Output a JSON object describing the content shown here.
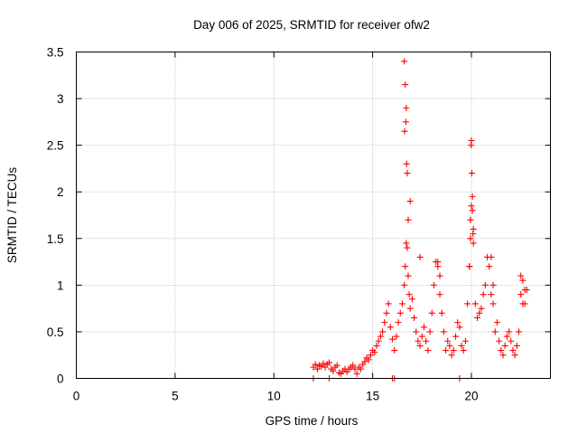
{
  "chart_data": {
    "type": "scatter",
    "title": "Day 006 of 2025, SRMTID for receiver ofw2",
    "xlabel": "GPS time / hours",
    "ylabel": "SRMTID / TECUs",
    "xlim": [
      0,
      24
    ],
    "ylim": [
      0,
      3.5
    ],
    "xticks": [
      0,
      5,
      10,
      15,
      20
    ],
    "yticks": [
      0,
      0.5,
      1,
      1.5,
      2,
      2.5,
      3,
      3.5
    ],
    "ytick_labels": [
      "0",
      "0.5",
      "1",
      "1.5",
      "2",
      "2.5",
      "3",
      "3.5"
    ],
    "grid": true,
    "marker": "plus",
    "series": [
      {
        "name": "SRMTID",
        "color": "#ff0000",
        "x": [
          12.0,
          12.1,
          12.2,
          12.3,
          12.4,
          12.5,
          12.6,
          12.7,
          12.8,
          12.9,
          13.0,
          13.1,
          13.2,
          13.3,
          13.4,
          13.5,
          13.6,
          13.7,
          13.8,
          13.9,
          14.0,
          14.1,
          14.2,
          14.3,
          14.4,
          14.5,
          14.6,
          14.7,
          14.8,
          14.9,
          15.0,
          15.1,
          15.2,
          15.3,
          15.4,
          15.5,
          15.6,
          15.7,
          15.8,
          15.9,
          16.0,
          16.1,
          16.2,
          16.3,
          16.4,
          16.5,
          16.6,
          16.65,
          16.7,
          16.75,
          16.8,
          16.85,
          16.9,
          17.0,
          17.1,
          17.2,
          17.3,
          17.4,
          17.5,
          17.6,
          17.7,
          17.8,
          17.9,
          18.0,
          18.1,
          18.2,
          18.3,
          18.4,
          18.5,
          18.6,
          18.7,
          18.8,
          18.9,
          19.0,
          19.1,
          19.2,
          19.3,
          19.4,
          19.5,
          19.6,
          19.7,
          19.8,
          19.9,
          19.95,
          20.0,
          20.05,
          20.1,
          20.2,
          20.3,
          20.4,
          20.5,
          20.6,
          20.7,
          20.8,
          20.9,
          21.0,
          21.1,
          21.2,
          21.3,
          21.4,
          21.5,
          21.6,
          21.7,
          21.8,
          21.9,
          22.0,
          22.1,
          22.2,
          22.3,
          22.4,
          22.5,
          22.6,
          22.7,
          22.8,
          12.0,
          12.8,
          16.0,
          16.1,
          19.4,
          16.6,
          16.65,
          16.7,
          16.68,
          16.62,
          16.72,
          16.75,
          16.8,
          16.9,
          20.0,
          19.98,
          20.02,
          20.05,
          19.95,
          20.08,
          20.1,
          19.9,
          21.0,
          21.1,
          22.5,
          22.6,
          22.7,
          18.3,
          18.4,
          17.4
        ],
        "y": [
          0.12,
          0.15,
          0.1,
          0.14,
          0.13,
          0.16,
          0.12,
          0.15,
          0.17,
          0.1,
          0.08,
          0.12,
          0.14,
          0.06,
          0.05,
          0.08,
          0.1,
          0.07,
          0.1,
          0.12,
          0.14,
          0.1,
          0.05,
          0.12,
          0.1,
          0.15,
          0.18,
          0.22,
          0.2,
          0.25,
          0.3,
          0.28,
          0.35,
          0.4,
          0.45,
          0.5,
          0.6,
          0.7,
          0.8,
          0.55,
          0.42,
          0.3,
          0.45,
          0.6,
          0.7,
          0.8,
          1.0,
          1.2,
          1.45,
          1.4,
          1.1,
          0.9,
          0.75,
          0.85,
          0.65,
          0.5,
          0.4,
          0.35,
          0.45,
          0.55,
          0.4,
          0.3,
          0.5,
          0.7,
          1.0,
          1.25,
          1.2,
          0.9,
          0.7,
          0.5,
          0.3,
          0.4,
          0.35,
          0.25,
          0.3,
          0.45,
          0.6,
          0.55,
          0.35,
          0.3,
          0.4,
          0.8,
          1.2,
          1.5,
          1.85,
          1.95,
          1.6,
          0.8,
          0.65,
          0.7,
          0.75,
          0.9,
          1.0,
          1.3,
          1.2,
          0.9,
          0.8,
          0.5,
          0.6,
          0.4,
          0.3,
          0.25,
          0.35,
          0.45,
          0.5,
          0.4,
          0.3,
          0.25,
          0.35,
          0.5,
          0.9,
          1.05,
          0.8,
          0.95,
          0.0,
          0.0,
          0.0,
          0.0,
          0.0,
          3.4,
          3.15,
          2.9,
          2.75,
          2.65,
          2.3,
          2.2,
          1.7,
          1.9,
          2.55,
          2.5,
          2.2,
          1.8,
          1.7,
          1.55,
          1.45,
          1.2,
          1.3,
          1.0,
          1.1,
          0.8,
          0.95,
          1.25,
          1.1,
          1.3
        ]
      }
    ]
  }
}
